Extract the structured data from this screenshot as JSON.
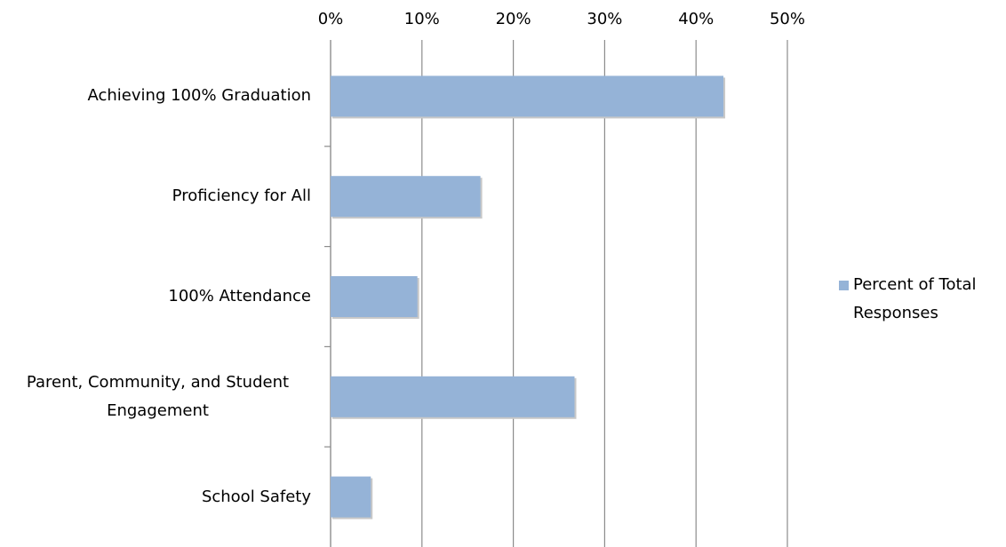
{
  "chart_data": {
    "type": "bar",
    "orientation": "horizontal",
    "categories": [
      "Achieving 100% Graduation",
      "Proficiency for All",
      "100% Attendance",
      "Parent, Community, and Student Engagement",
      "School Safety"
    ],
    "series": [
      {
        "name": "Percent of Total Responses",
        "color": "#95b3d7",
        "values": [
          43.0,
          16.4,
          9.5,
          26.7,
          4.4
        ]
      }
    ],
    "xlim": [
      0,
      50
    ],
    "xticks": [
      {
        "value": 0,
        "label": "0%"
      },
      {
        "value": 10,
        "label": "10%"
      },
      {
        "value": 20,
        "label": "20%"
      },
      {
        "value": 30,
        "label": "30%"
      },
      {
        "value": 40,
        "label": "40%"
      },
      {
        "value": 50,
        "label": "50%"
      }
    ],
    "grid": true,
    "legend": "right"
  }
}
